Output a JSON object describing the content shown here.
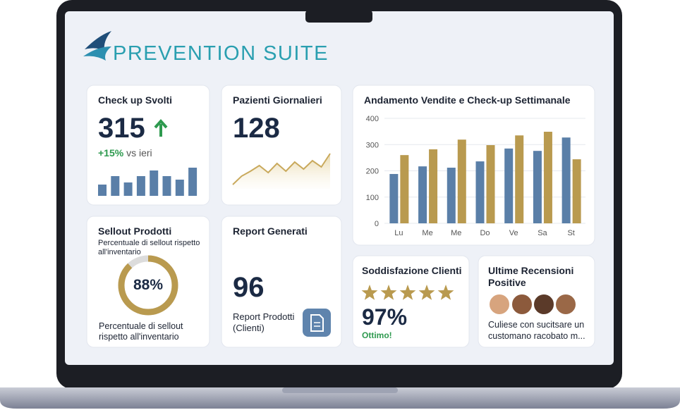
{
  "brand": "PREVENTION SUITE",
  "checkup": {
    "title": "Check up Svolti",
    "value": 315,
    "change": "+15%",
    "change_note": "vs ieri",
    "bars": {
      "values": [
        16,
        28,
        19,
        28,
        36,
        28,
        23,
        40
      ],
      "ylim": [
        0,
        40
      ],
      "color": "#5a7fa8"
    }
  },
  "patients": {
    "title": "Pazienti Giornalieri",
    "value": 128,
    "trend": {
      "values": [
        3,
        15,
        22,
        30,
        20,
        33,
        22,
        35,
        25,
        37,
        28,
        47
      ],
      "ylim": [
        0,
        50
      ],
      "color": "#c9a95c"
    }
  },
  "sales": {
    "type": "bar",
    "title": "Andamento Vendite e Check-up Settimanale",
    "categories": [
      "Lu",
      "Me",
      "Me",
      "Do",
      "Ve",
      "Sa",
      "St"
    ],
    "series": [
      {
        "color": "#5a7fa8",
        "values": [
          188,
          217,
          212,
          236,
          285,
          276,
          327
        ]
      },
      {
        "color": "#b99a4f",
        "values": [
          260,
          282,
          319,
          298,
          335,
          349,
          244
        ]
      }
    ],
    "ylim": [
      0,
      400
    ],
    "yticks": [
      0,
      100,
      200,
      300,
      400
    ],
    "grid": true
  },
  "sellout": {
    "title": "Sellout Prodotti",
    "subtitle": "Percentuale di sellout rispetto all'inventario",
    "percent": {
      "value": 88,
      "label": "88%"
    },
    "color": "#b99a4f",
    "footer": "Percentuale di sellout rispetto all'inventario"
  },
  "reports": {
    "title": "Report Generati",
    "value": 96,
    "label": "Report Prodotti (Clienti)"
  },
  "satisfaction": {
    "title": "Soddisfazione Clienti",
    "value": "97%",
    "note": "Ottimo!"
  },
  "reviews": {
    "title": "Ultime Recensioni Positive",
    "text": "Culiese con sucitsare un customano racobato m..."
  }
}
